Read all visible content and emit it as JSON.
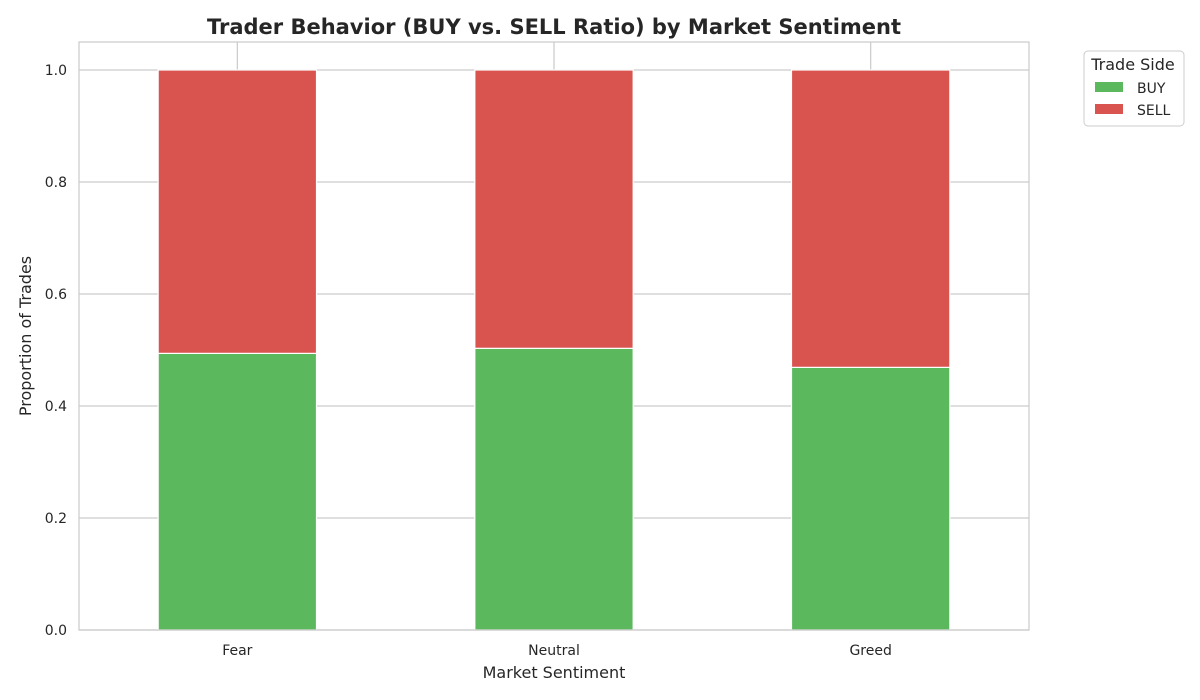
{
  "chart_data": {
    "type": "bar",
    "stacked": true,
    "title": "Trader Behavior (BUY vs. SELL Ratio) by Market Sentiment",
    "xlabel": "Market Sentiment",
    "ylabel": "Proportion of Trades",
    "categories": [
      "Fear",
      "Neutral",
      "Greed"
    ],
    "series": [
      {
        "name": "BUY",
        "color": "#5cb85c",
        "values": [
          0.494,
          0.503,
          0.469
        ]
      },
      {
        "name": "SELL",
        "color": "#d9534f",
        "values": [
          0.506,
          0.497,
          0.531
        ]
      }
    ],
    "ylim": [
      0,
      1.05
    ],
    "yticks": [
      0.0,
      0.2,
      0.4,
      0.6,
      0.8,
      1.0
    ],
    "ytick_labels": [
      "0.0",
      "0.2",
      "0.4",
      "0.6",
      "0.8",
      "1.0"
    ],
    "grid": true,
    "legend": {
      "title": "Trade Side",
      "placement": "upper-right, outside plot"
    }
  }
}
